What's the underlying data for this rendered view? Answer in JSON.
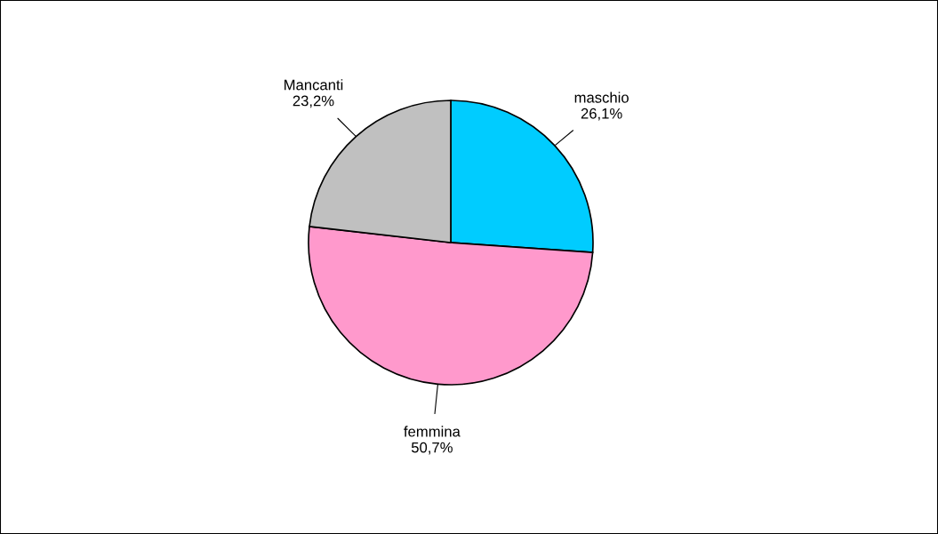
{
  "chart_data": {
    "type": "pie",
    "categories": [
      "maschio",
      "femmina",
      "Mancanti"
    ],
    "values": [
      26.1,
      50.7,
      23.2
    ],
    "value_labels": [
      "26,1%",
      "50,7%",
      "23,2%"
    ],
    "colors": [
      "#00ccff",
      "#ff99cc",
      "#c0c0c0"
    ],
    "legend": false
  }
}
